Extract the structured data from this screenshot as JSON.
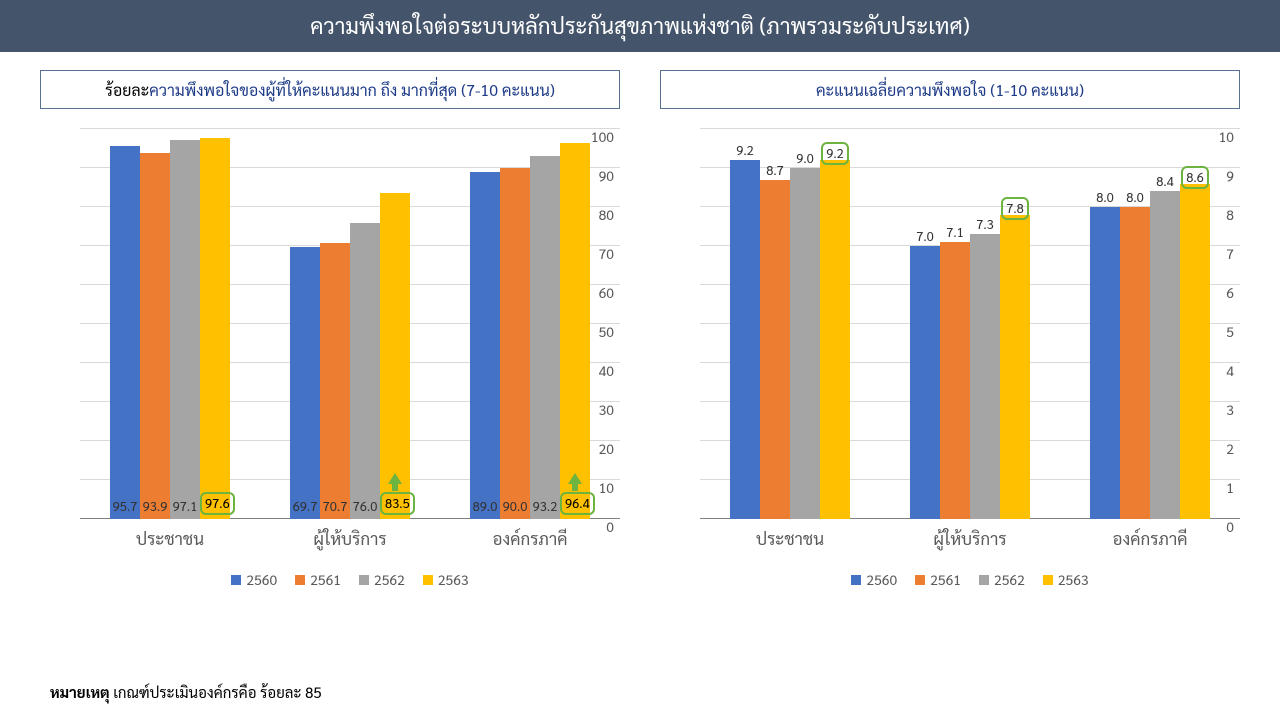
{
  "header": "ความพึงพอใจต่อระบบหลักประกันสุขภาพแห่งชาติ (ภาพรวมระดับประเทศ)",
  "colors": {
    "s2560": "#4472c4",
    "s2561": "#ed7d31",
    "s2562": "#a5a5a5",
    "s2563": "#ffc000",
    "grid": "#d9d9d9",
    "axis": "#595959",
    "highlight_border": "#6db33f",
    "title_border": "#597190",
    "title_blue": "#1f3c88",
    "header_bg": "#44546a"
  },
  "series_years": [
    "2560",
    "2561",
    "2562",
    "2563"
  ],
  "left_chart": {
    "title_prefix": "ร้อยละ",
    "title_blue": "ความพึงพอใจของผู้ที่ให้คะแนนมาก ถึง มากที่สุด (7-10 คะแนน)",
    "ymax": 100,
    "ystep": 10,
    "label_fontsize": 13,
    "label_pos": "inside",
    "categories": [
      "ประชาชน",
      "ผู้ให้บริการ",
      "องค์กรภาคี"
    ],
    "data": [
      {
        "values": [
          95.7,
          93.9,
          97.1,
          97.6
        ],
        "highlight_last": true,
        "arrow": false
      },
      {
        "values": [
          69.7,
          70.7,
          76.0,
          83.5
        ],
        "highlight_last": true,
        "arrow": true
      },
      {
        "values": [
          89.0,
          90.0,
          93.2,
          96.4
        ],
        "highlight_last": true,
        "arrow": true
      }
    ]
  },
  "right_chart": {
    "title_prefix": "",
    "title_blue": "คะแนนเฉลี่ยความพึงพอใจ (1-10 คะแนน)",
    "ymax": 10,
    "ystep": 1,
    "label_fontsize": 13,
    "label_pos": "above",
    "categories": [
      "ประชาชน",
      "ผู้ให้บริการ",
      "องค์กรภาคี"
    ],
    "data": [
      {
        "values": [
          9.2,
          8.7,
          9.0,
          9.2
        ],
        "highlight_last": true,
        "arrow": false
      },
      {
        "values": [
          7.0,
          7.1,
          7.3,
          7.8
        ],
        "highlight_last": true,
        "arrow": false
      },
      {
        "values": [
          8.0,
          8.0,
          8.4,
          8.6
        ],
        "highlight_last": true,
        "arrow": false
      }
    ]
  },
  "footnote_bold": "หมายเหตุ",
  "footnote_rest": " เกณฑ์ประเมินองค์กรคือ ร้อยละ 85"
}
